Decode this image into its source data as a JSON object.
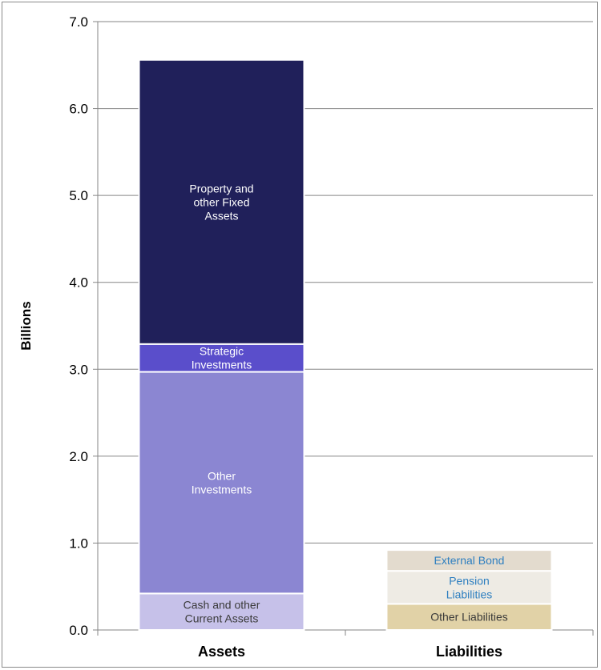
{
  "chart_data": {
    "type": "bar",
    "stacked": true,
    "title": "",
    "xlabel": "",
    "ylabel": "Billions",
    "ylim": [
      0,
      7
    ],
    "yticks": [
      "0.0",
      "1.0",
      "2.0",
      "3.0",
      "4.0",
      "5.0",
      "6.0",
      "7.0"
    ],
    "grid": true,
    "legend": "none",
    "categories": [
      "Assets",
      "Liabilities"
    ],
    "bars": [
      {
        "category": "Assets",
        "segments": [
          {
            "label_lines": [
              "Cash and other",
              "Current Assets"
            ],
            "value": 0.42,
            "color": "#c6c1e9",
            "text_color": "#3a3a3a"
          },
          {
            "label_lines": [
              "Other",
              "Investments"
            ],
            "value": 2.55,
            "color": "#8b86d2",
            "text_color": "#ffffff"
          },
          {
            "label_lines": [
              "Strategic",
              "Investments"
            ],
            "value": 0.32,
            "color": "#5a4ecb",
            "text_color": "#ffffff"
          },
          {
            "label_lines": [
              "Property and",
              "other Fixed",
              "Assets"
            ],
            "value": 3.27,
            "color": "#20205a",
            "text_color": "#ffffff"
          }
        ]
      },
      {
        "category": "Liabilities",
        "segments": [
          {
            "label_lines": [
              "Other Liabilities"
            ],
            "value": 0.3,
            "color": "#e1d2a7",
            "text_color": "#3a3a3a"
          },
          {
            "label_lines": [
              "Pension",
              "Liabilities"
            ],
            "value": 0.38,
            "color": "#eeebe4",
            "text_color": "#2e7fc0"
          },
          {
            "label_lines": [
              "External Bond"
            ],
            "value": 0.24,
            "color": "#e3dbce",
            "text_color": "#2e7fc0"
          }
        ]
      }
    ]
  }
}
